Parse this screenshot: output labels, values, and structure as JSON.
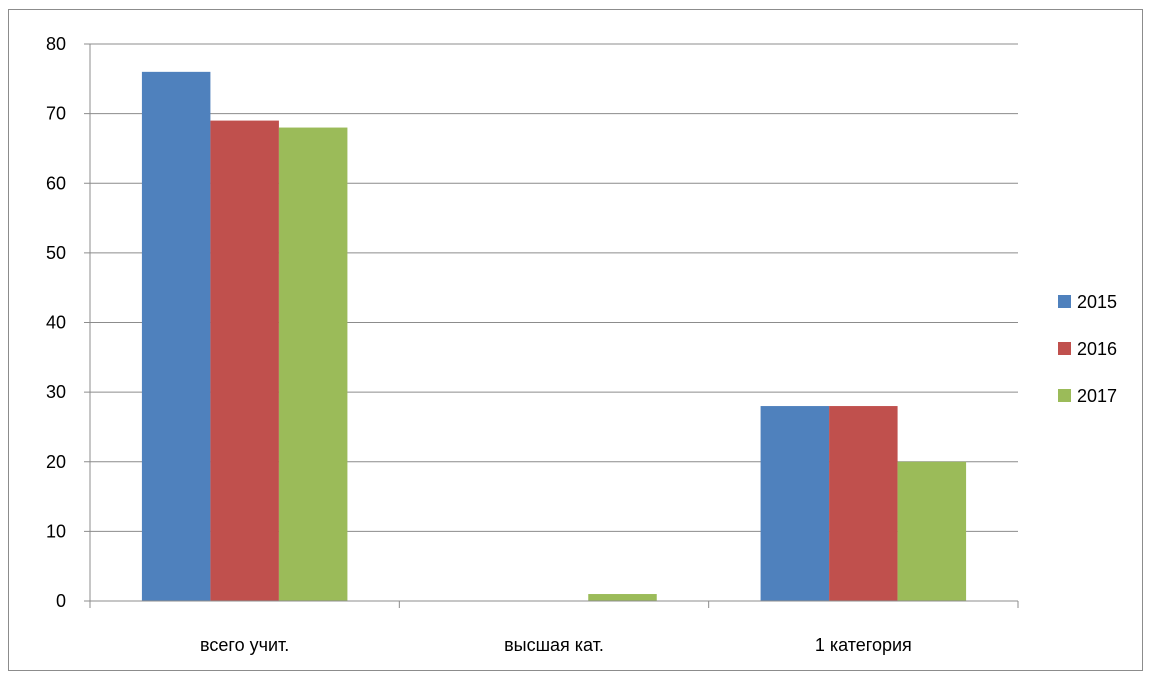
{
  "chart_data": {
    "type": "bar",
    "categories": [
      "всего учит.",
      "высшая кат.",
      "1 категория"
    ],
    "series": [
      {
        "name": "2015",
        "values": [
          76,
          0,
          28
        ],
        "color": "#4f81bd"
      },
      {
        "name": "2016",
        "values": [
          69,
          0,
          28
        ],
        "color": "#c0504d"
      },
      {
        "name": "2017",
        "values": [
          68,
          1,
          20
        ],
        "color": "#9bbb59"
      }
    ],
    "ylim": [
      0,
      80
    ],
    "yticks": [
      "0",
      "10",
      "20",
      "30",
      "40",
      "50",
      "60",
      "70",
      "80"
    ],
    "grid": true,
    "legend_position": "right"
  }
}
